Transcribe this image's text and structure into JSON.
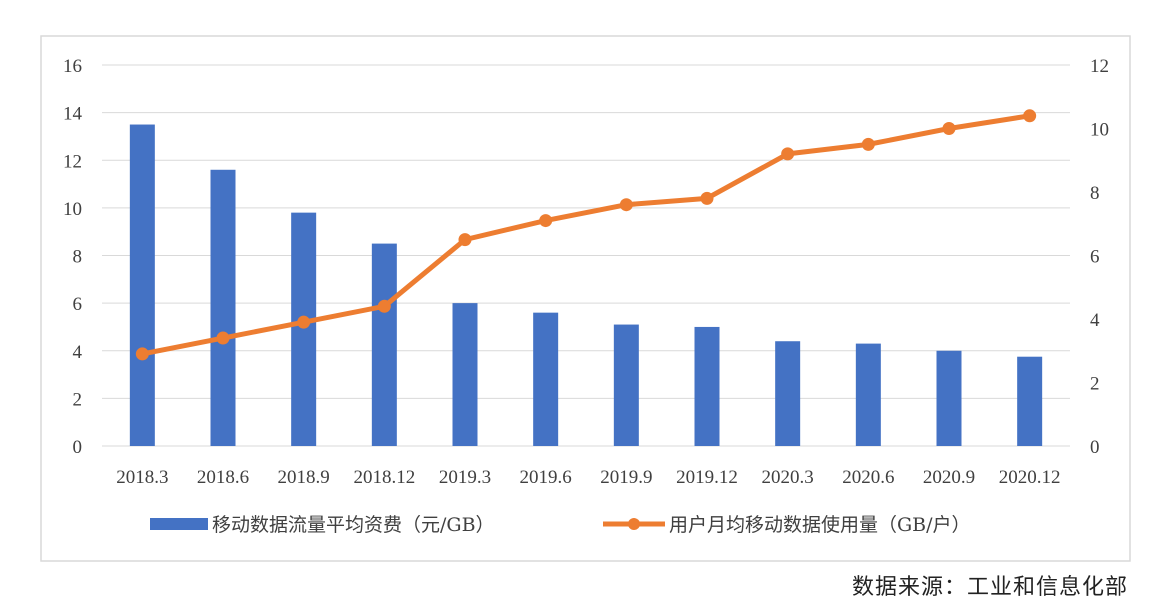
{
  "chart_data": {
    "type": "bar+line",
    "categories": [
      "2018.3",
      "2018.6",
      "2018.9",
      "2018.12",
      "2019.3",
      "2019.6",
      "2019.9",
      "2019.12",
      "2020.3",
      "2020.6",
      "2020.9",
      "2020.12"
    ],
    "series": [
      {
        "name": "移动数据流量平均资费（元/GB）",
        "type": "bar",
        "axis": "left",
        "color": "#4472C4",
        "values": [
          13.5,
          11.6,
          9.8,
          8.5,
          6.0,
          5.6,
          5.1,
          5.0,
          4.4,
          4.3,
          4.0,
          3.75
        ]
      },
      {
        "name": "用户月均移动数据使用量（GB/户）",
        "type": "line",
        "axis": "right",
        "color": "#ED7D31",
        "values": [
          2.9,
          3.4,
          3.9,
          4.4,
          6.5,
          7.1,
          7.6,
          7.8,
          9.2,
          9.5,
          10.0,
          10.4
        ]
      }
    ],
    "left_axis": {
      "ylim": [
        0,
        16
      ],
      "ticks": [
        "0",
        "2",
        "4",
        "6",
        "8",
        "10",
        "12",
        "14",
        "16"
      ]
    },
    "right_axis": {
      "ylim": [
        0,
        12
      ],
      "ticks": [
        "0",
        "2",
        "4",
        "6",
        "8",
        "10",
        "12"
      ]
    },
    "grid": "horizontal",
    "legend_position": "bottom"
  },
  "source_note": "数据来源：工业和信息化部"
}
